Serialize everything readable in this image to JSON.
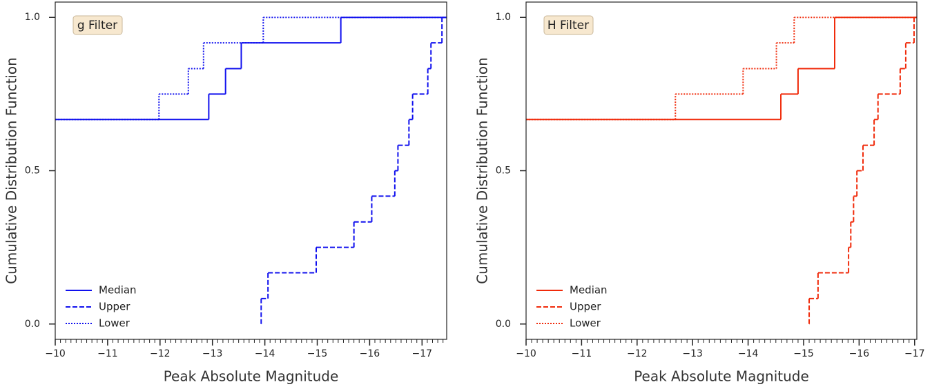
{
  "chart_data": [
    {
      "type": "step",
      "annotation": "g Filter",
      "x_label": "Peak Absolute Magnitude",
      "y_label": "Cumulative Distribution Function",
      "xlim": [
        -10,
        -17.47
      ],
      "ylim": [
        -0.05,
        1.05
      ],
      "xticks": [
        {
          "value": -10,
          "label": "−10"
        },
        {
          "value": -11,
          "label": "−11"
        },
        {
          "value": -12,
          "label": "−12"
        },
        {
          "value": -13,
          "label": "−13"
        },
        {
          "value": -14,
          "label": "−14"
        },
        {
          "value": -15,
          "label": "−15"
        },
        {
          "value": -16,
          "label": "−16"
        },
        {
          "value": -17,
          "label": "−17"
        }
      ],
      "minor_xtick_step": 0.1,
      "yticks": [
        {
          "value": 0,
          "label": "0.0"
        },
        {
          "value": 0.5,
          "label": "0.5"
        },
        {
          "value": 1,
          "label": "1.0"
        }
      ],
      "legend": "lower left",
      "series": [
        {
          "name": "Median",
          "color": "#1010ee",
          "linestyle": "solid",
          "x": [
            -10,
            -12.93,
            -13.25,
            -13.55,
            -15.45
          ],
          "values": [
            0.667,
            0.75,
            0.833,
            0.917,
            1.0
          ]
        },
        {
          "name": "Upper",
          "color": "#1010ee",
          "linestyle": "dashed",
          "x": [
            -13.93,
            -13.93,
            -14.06,
            -14.98,
            -15.7,
            -16.04,
            -16.48,
            -16.54,
            -16.75,
            -16.82,
            -17.11,
            -17.17,
            -17.38
          ],
          "values": [
            0,
            0.083,
            0.167,
            0.25,
            0.333,
            0.417,
            0.5,
            0.583,
            0.667,
            0.75,
            0.833,
            0.917,
            1.0
          ]
        },
        {
          "name": "Lower",
          "color": "#1010ee",
          "linestyle": "dotted",
          "x": [
            -10,
            -11.98,
            -12.54,
            -12.83,
            -13.97
          ],
          "values": [
            0.667,
            0.75,
            0.833,
            0.917,
            1.0
          ]
        }
      ]
    },
    {
      "type": "step",
      "annotation": "H Filter",
      "x_label": "Peak Absolute Magnitude",
      "y_label": "Cumulative Distribution Function",
      "xlim": [
        -10,
        -17.04
      ],
      "ylim": [
        -0.05,
        1.05
      ],
      "xticks": [
        {
          "value": -10,
          "label": "−10"
        },
        {
          "value": -11,
          "label": "−11"
        },
        {
          "value": -12,
          "label": "−12"
        },
        {
          "value": -13,
          "label": "−13"
        },
        {
          "value": -14,
          "label": "−14"
        },
        {
          "value": -15,
          "label": "−15"
        },
        {
          "value": -16,
          "label": "−16"
        },
        {
          "value": -17,
          "label": "−17"
        }
      ],
      "minor_xtick_step": 0.1,
      "yticks": [
        {
          "value": 0,
          "label": "0.0"
        },
        {
          "value": 0.5,
          "label": "0.5"
        },
        {
          "value": 1,
          "label": "1.0"
        }
      ],
      "legend": "lower left",
      "series": [
        {
          "name": "Median",
          "color": "#f02a0a",
          "linestyle": "solid",
          "x": [
            -10,
            -14.59,
            -14.9,
            -15.56
          ],
          "values": [
            0.667,
            0.75,
            0.833,
            1.0
          ]
        },
        {
          "name": "Upper",
          "color": "#f02a0a",
          "linestyle": "dashed",
          "x": [
            -15.1,
            -15.1,
            -15.26,
            -15.81,
            -15.85,
            -15.9,
            -15.96,
            -16.07,
            -16.27,
            -16.34,
            -16.74,
            -16.84,
            -16.99
          ],
          "values": [
            0,
            0.083,
            0.167,
            0.25,
            0.333,
            0.417,
            0.5,
            0.583,
            0.667,
            0.75,
            0.833,
            0.917,
            1.0
          ]
        },
        {
          "name": "Lower",
          "color": "#f02a0a",
          "linestyle": "dotted",
          "x": [
            -10,
            -12.69,
            -13.91,
            -14.51,
            -14.83
          ],
          "values": [
            0.667,
            0.75,
            0.833,
            0.917,
            1.0
          ]
        }
      ]
    }
  ]
}
